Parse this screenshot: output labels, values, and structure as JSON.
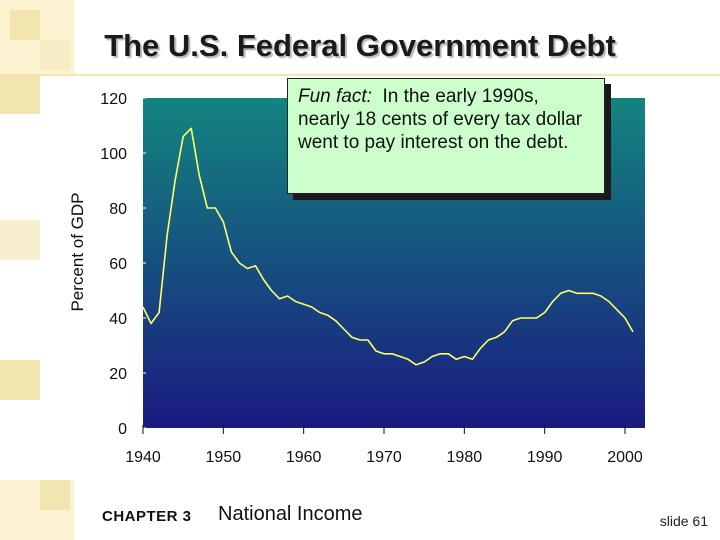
{
  "slide": {
    "title": "The U.S. Federal Government Debt",
    "footer_chapter": "CHAPTER 3",
    "footer_title": "National Income",
    "slide_number": "slide 61"
  },
  "callout": {
    "lead": "Fun fact:",
    "text": "In the early 1990s, nearly 18 cents of every tax dollar went to pay interest on the debt."
  },
  "colors": {
    "plot_top": "#13857f",
    "plot_bottom": "#1a1a80",
    "line": "#ffff66",
    "callout_bg": "#ccffcc"
  },
  "chart_data": {
    "type": "line",
    "title": "The U.S. Federal Government Debt",
    "xlabel": "",
    "ylabel": "Percent of GDP",
    "xlim": [
      1940,
      2000
    ],
    "ylim": [
      0,
      120
    ],
    "xticks": [
      1940,
      1950,
      1960,
      1970,
      1980,
      1990,
      2000
    ],
    "yticks": [
      0,
      20,
      40,
      60,
      80,
      100,
      120
    ],
    "grid": false,
    "series": [
      {
        "x": [
          1940,
          1941,
          1942,
          1943,
          1944,
          1945,
          1946,
          1947,
          1948,
          1949,
          1950,
          1951,
          1952,
          1953,
          1954,
          1955,
          1956,
          1957,
          1958,
          1959,
          1960,
          1961,
          1962,
          1963,
          1964,
          1965,
          1966,
          1967,
          1968,
          1969,
          1970,
          1971,
          1972,
          1973,
          1974,
          1975,
          1976,
          1977,
          1978,
          1979,
          1980,
          1981,
          1982,
          1983,
          1984,
          1985,
          1986,
          1987,
          1988,
          1989,
          1990,
          1991,
          1992,
          1993,
          1994,
          1995,
          1996,
          1997,
          1998,
          1999,
          2000,
          2001
        ],
        "y": [
          44,
          38,
          42,
          70,
          90,
          106,
          109,
          92,
          80,
          80,
          75,
          64,
          60,
          58,
          59,
          54,
          50,
          47,
          48,
          46,
          45,
          44,
          42,
          41,
          39,
          36,
          33,
          32,
          32,
          28,
          27,
          27,
          26,
          25,
          23,
          24,
          26,
          27,
          27,
          25,
          26,
          25,
          29,
          32,
          33,
          35,
          39,
          40,
          40,
          40,
          42,
          46,
          49,
          50,
          49,
          49,
          49,
          48,
          46,
          43,
          40,
          35
        ]
      }
    ]
  }
}
